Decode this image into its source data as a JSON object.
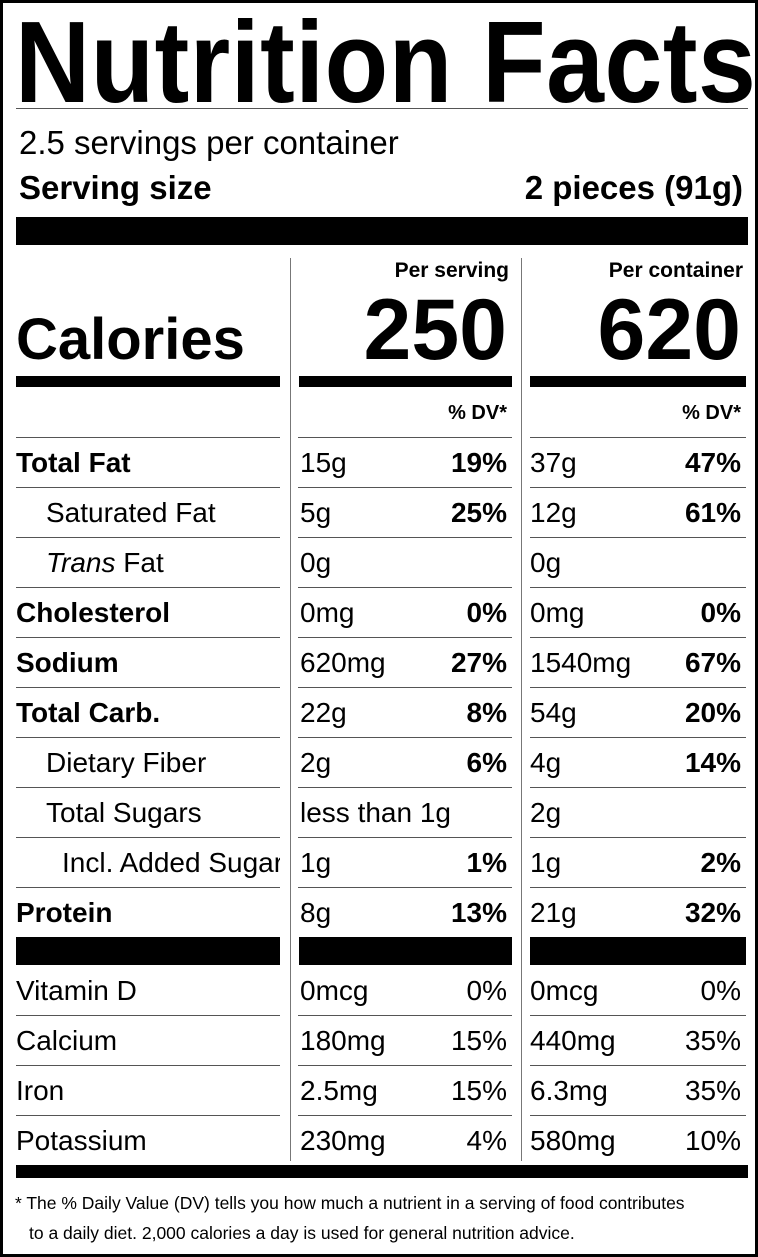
{
  "title": "Nutrition Facts",
  "servings": "2.5 servings per container",
  "serving_size": {
    "label": "Serving size",
    "value": "2 pieces (91g)"
  },
  "calories": {
    "label": "Calories",
    "per_serving_header": "Per serving",
    "per_container_header": "Per container",
    "per_serving": 250,
    "per_container": 620
  },
  "dv_header": "% DV*",
  "nutrients": [
    {
      "name": "Total Fat",
      "per_serving": "15g",
      "per_serving_dv": "19%",
      "per_container": "37g",
      "per_container_dv": "47%"
    },
    {
      "name": "Saturated Fat",
      "per_serving": "5g",
      "per_serving_dv": "25%",
      "per_container": "12g",
      "per_container_dv": "61%"
    },
    {
      "name_italic": "Trans",
      "name": "Fat",
      "per_serving": "0g",
      "per_container": "0g"
    },
    {
      "name": "Cholesterol",
      "per_serving": "0mg",
      "per_serving_dv": "0%",
      "per_container": "0mg",
      "per_container_dv": "0%"
    },
    {
      "name": "Sodium",
      "per_serving": "620mg",
      "per_serving_dv": "27%",
      "per_container": "1540mg",
      "per_container_dv": "67%"
    },
    {
      "name": "Total Carb.",
      "per_serving": "22g",
      "per_serving_dv": "8%",
      "per_container": "54g",
      "per_container_dv": "20%"
    },
    {
      "name": "Dietary Fiber",
      "per_serving": "2g",
      "per_serving_dv": "6%",
      "per_container": "4g",
      "per_container_dv": "14%"
    },
    {
      "name": "Total Sugars",
      "per_serving": "less than 1g",
      "per_container": "2g"
    },
    {
      "name": "Incl. Added Sugar",
      "per_serving": "1g",
      "per_serving_dv": "1%",
      "per_container": "1g",
      "per_container_dv": "2%"
    },
    {
      "name": "Protein",
      "per_serving": "8g",
      "per_serving_dv": "13%",
      "per_container": "21g",
      "per_container_dv": "32%"
    }
  ],
  "vitamins": [
    {
      "name": "Vitamin D",
      "per_serving": "0mcg",
      "per_serving_dv": "0%",
      "per_container": "0mcg",
      "per_container_dv": "0%"
    },
    {
      "name": "Calcium",
      "per_serving": "180mg",
      "per_serving_dv": "15%",
      "per_container": "440mg",
      "per_container_dv": "35%"
    },
    {
      "name": "Iron",
      "per_serving": "2.5mg",
      "per_serving_dv": "15%",
      "per_container": "6.3mg",
      "per_container_dv": "35%"
    },
    {
      "name": "Potassium",
      "per_serving": "230mg",
      "per_serving_dv": "4%",
      "per_container": "580mg",
      "per_container_dv": "10%"
    }
  ],
  "footnote": [
    "* The % Daily Value (DV) tells you how much a nutrient in a serving of food contributes",
    "to a daily diet. 2,000 calories a day is used for general nutrition advice."
  ]
}
